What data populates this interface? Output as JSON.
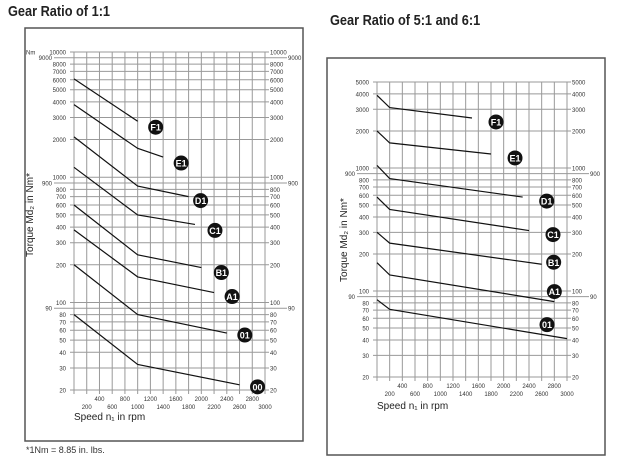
{
  "footnote": "*1Nm = 8.85 in. lbs.",
  "chart_data": [
    {
      "type": "line",
      "title": "Gear Ratio of 1:1",
      "xlabel": "Speed n₁ in rpm",
      "ylabel": "Torque Md₂ in Nm*",
      "y_unit_label": "Nm",
      "xlim": [
        0,
        3000
      ],
      "ylim": [
        20,
        10000
      ],
      "yscale": "log",
      "xticks_top": [
        400,
        800,
        1200,
        1600,
        2000,
        2400,
        2800
      ],
      "xticks_bottom": [
        200,
        600,
        1000,
        1400,
        1800,
        2200,
        2600,
        3000
      ],
      "yticks": [
        10000,
        9000,
        8000,
        7000,
        6000,
        5000,
        4000,
        3000,
        2000,
        1000,
        900,
        800,
        700,
        600,
        500,
        400,
        300,
        200,
        100,
        90,
        80,
        70,
        60,
        50,
        40,
        30,
        20
      ],
      "series": [
        {
          "name": "F1",
          "x": [
            0,
            1000
          ],
          "y": [
            6100,
            2800
          ]
        },
        {
          "name": "E1",
          "x": [
            0,
            1000,
            1400
          ],
          "y": [
            3800,
            1700,
            1450
          ]
        },
        {
          "name": "D1",
          "x": [
            0,
            1000,
            1800
          ],
          "y": [
            2100,
            850,
            700
          ]
        },
        {
          "name": "C1",
          "x": [
            0,
            1000,
            1900
          ],
          "y": [
            1200,
            500,
            420
          ]
        },
        {
          "name": "B1",
          "x": [
            0,
            1000,
            2000
          ],
          "y": [
            600,
            240,
            190
          ]
        },
        {
          "name": "A1",
          "x": [
            0,
            1000,
            2200
          ],
          "y": [
            380,
            160,
            120
          ]
        },
        {
          "name": "01",
          "x": [
            0,
            1000,
            2400
          ],
          "y": [
            200,
            80,
            57
          ]
        },
        {
          "name": "00",
          "x": [
            0,
            1000,
            2600
          ],
          "y": [
            80,
            32,
            22
          ]
        }
      ]
    },
    {
      "type": "line",
      "title": "Gear Ratio of 5:1 and 6:1",
      "xlabel": "Speed n₁ in rpm",
      "ylabel": "Torque Md₂ in Nm*",
      "xlim": [
        0,
        3000
      ],
      "ylim": [
        20,
        5000
      ],
      "yscale": "log",
      "xticks_top": [
        400,
        800,
        1200,
        1600,
        2000,
        2400,
        2800
      ],
      "xticks_bottom": [
        200,
        600,
        1000,
        1400,
        1800,
        2200,
        2600,
        3000
      ],
      "yticks": [
        5000,
        4000,
        3000,
        2000,
        1000,
        900,
        800,
        700,
        600,
        500,
        400,
        300,
        200,
        100,
        90,
        80,
        70,
        60,
        50,
        40,
        30,
        20
      ],
      "series": [
        {
          "name": "F1",
          "x": [
            0,
            200,
            1500
          ],
          "y": [
            3900,
            3100,
            2550
          ]
        },
        {
          "name": "E1",
          "x": [
            0,
            200,
            1800
          ],
          "y": [
            2000,
            1600,
            1300
          ]
        },
        {
          "name": "D1",
          "x": [
            0,
            200,
            2300
          ],
          "y": [
            1050,
            820,
            580
          ]
        },
        {
          "name": "C1",
          "x": [
            0,
            200,
            2400
          ],
          "y": [
            580,
            460,
            310
          ]
        },
        {
          "name": "B1",
          "x": [
            0,
            200,
            2600
          ],
          "y": [
            300,
            245,
            165
          ]
        },
        {
          "name": "A1",
          "x": [
            0,
            200,
            2800
          ],
          "y": [
            170,
            135,
            82
          ]
        },
        {
          "name": "01",
          "x": [
            0,
            200,
            3000
          ],
          "y": [
            85,
            71,
            41
          ]
        }
      ]
    }
  ]
}
